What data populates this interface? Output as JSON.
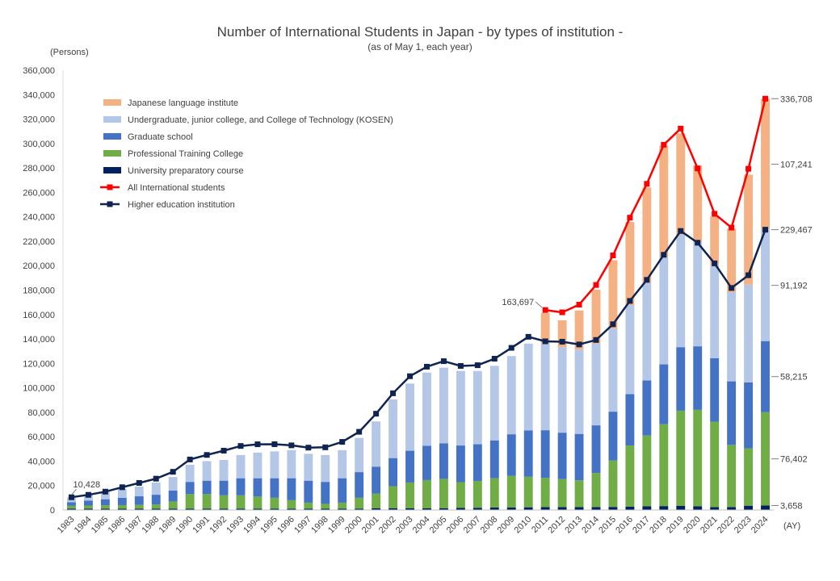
{
  "chart_data": {
    "type": "bar",
    "title": "Number of International Students in Japan - by types of institution -",
    "subtitle": "(as of May 1, each year)",
    "ylabel": "(Persons)",
    "xlabel": "(AY)",
    "ylim": [
      0,
      360000
    ],
    "yticks": [
      0,
      20000,
      40000,
      60000,
      80000,
      100000,
      120000,
      140000,
      160000,
      180000,
      200000,
      220000,
      240000,
      260000,
      280000,
      300000,
      320000,
      340000,
      360000
    ],
    "ytick_labels": [
      "0",
      "20,000",
      "40,000",
      "60,000",
      "80,000",
      "100,000",
      "120,000",
      "140,000",
      "160,000",
      "180,000",
      "200,000",
      "220,000",
      "240,000",
      "260,000",
      "280,000",
      "300,000",
      "320,000",
      "340,000",
      "360,000"
    ],
    "categories": [
      "1983",
      "1984",
      "1985",
      "1986",
      "1987",
      "1988",
      "1989",
      "1990",
      "1991",
      "1992",
      "1993",
      "1994",
      "1995",
      "1996",
      "1997",
      "1998",
      "1999",
      "2000",
      "2001",
      "2002",
      "2003",
      "2004",
      "2005",
      "2006",
      "2007",
      "2008",
      "2009",
      "2010",
      "2011",
      "2012",
      "2013",
      "2014",
      "2015",
      "2016",
      "2017",
      "2018",
      "2019",
      "2020",
      "2021",
      "2022",
      "2023",
      "2024"
    ],
    "series": [
      {
        "name": "Japanese language institute",
        "kind": "bar",
        "color": "#f4b183",
        "values": [
          0,
          0,
          0,
          0,
          0,
          0,
          0,
          0,
          0,
          0,
          0,
          0,
          0,
          0,
          0,
          0,
          0,
          0,
          0,
          0,
          0,
          0,
          0,
          0,
          0,
          0,
          0,
          0,
          25000,
          22000,
          32000,
          44000,
          56000,
          68000,
          78000,
          91000,
          83000,
          63000,
          40000,
          52000,
          90000,
          107241
        ]
      },
      {
        "name": "Undergraduate, junior college, and College of Technology (KOSEN)",
        "kind": "bar",
        "color": "#b4c7e7",
        "values": [
          4000,
          5000,
          6000,
          7000,
          8000,
          10000,
          11000,
          14000,
          16000,
          17000,
          19000,
          21000,
          22000,
          23000,
          22000,
          22000,
          23000,
          28000,
          37000,
          48000,
          55000,
          60000,
          62000,
          61000,
          60000,
          61000,
          64000,
          71000,
          71000,
          70000,
          69000,
          67000,
          68000,
          73000,
          80000,
          88000,
          92000,
          85000,
          76000,
          73000,
          80000,
          91192
        ]
      },
      {
        "name": "Graduate school",
        "kind": "bar",
        "color": "#4472c4",
        "values": [
          3000,
          4000,
          5000,
          6000,
          7000,
          8000,
          9000,
          10000,
          11000,
          12000,
          14000,
          15000,
          16000,
          18000,
          18000,
          18000,
          20000,
          21000,
          22000,
          23000,
          26000,
          28000,
          29000,
          30000,
          30000,
          31000,
          34000,
          38000,
          39000,
          38000,
          38000,
          39000,
          40000,
          42000,
          45000,
          49000,
          52000,
          52000,
          52000,
          52000,
          54000,
          58215
        ]
      },
      {
        "name": "Professional Training College",
        "kind": "bar",
        "color": "#70ad47",
        "values": [
          2400,
          2600,
          2800,
          3000,
          3200,
          3500,
          6000,
          12000,
          12000,
          11000,
          11000,
          10000,
          9000,
          7000,
          5000,
          4000,
          5000,
          9000,
          12000,
          18000,
          21000,
          23000,
          24000,
          21000,
          22000,
          24000,
          26000,
          25000,
          24000,
          23000,
          22000,
          28000,
          38000,
          50000,
          58000,
          67000,
          78000,
          79000,
          70000,
          51000,
          47000,
          76402
        ]
      },
      {
        "name": "University preparatory course",
        "kind": "bar",
        "color": "#002060",
        "values": [
          1000,
          1000,
          1000,
          1000,
          1000,
          1000,
          1000,
          1000,
          1000,
          1000,
          1000,
          1000,
          1000,
          1000,
          1000,
          1000,
          1000,
          1000,
          1500,
          1500,
          1500,
          1500,
          1500,
          1800,
          1800,
          2000,
          2000,
          2200,
          2300,
          2300,
          2300,
          2300,
          2500,
          2800,
          3000,
          3200,
          3300,
          3000,
          2300,
          2300,
          3500,
          3658
        ]
      },
      {
        "name": "All International students",
        "kind": "line",
        "color": "#ff0000",
        "values": [
          null,
          null,
          null,
          null,
          null,
          null,
          null,
          null,
          null,
          null,
          null,
          null,
          null,
          null,
          null,
          null,
          null,
          null,
          null,
          null,
          null,
          null,
          null,
          null,
          null,
          null,
          null,
          null,
          163697,
          161800,
          168100,
          184200,
          208400,
          239300,
          267000,
          298980,
          312214,
          279597,
          242444,
          231146,
          279274,
          336708
        ]
      },
      {
        "name": "Higher education institution",
        "kind": "line",
        "color": "#0f2450",
        "values": [
          10428,
          12410,
          15009,
          18631,
          22154,
          25643,
          31251,
          41347,
          45066,
          48561,
          52405,
          53787,
          53847,
          52921,
          51047,
          51298,
          55755,
          64011,
          78812,
          95550,
          109508,
          117302,
          121812,
          117927,
          118498,
          123829,
          132720,
          141774,
          138075,
          137756,
          135519,
          139185,
          152062,
          171122,
          188384,
          208901,
          228403,
          218783,
          201877,
          181741,
          192174,
          229467
        ]
      }
    ],
    "annotations": {
      "first_value": "10,428",
      "first_all_students": "163,697",
      "right_labels": [
        "336,708",
        "107,241",
        "229,467",
        "91,192",
        "58,215",
        "76,402",
        "3,658"
      ]
    },
    "legend": {
      "position": "top-left",
      "box": true
    },
    "grid": false
  }
}
